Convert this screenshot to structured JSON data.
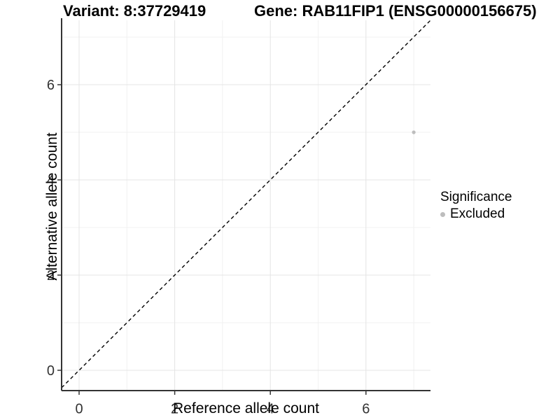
{
  "header": {
    "variant_title": "Variant: 8:37729419",
    "gene_title": "Gene: RAB11FIP1 (ENSG00000156675)"
  },
  "chart_data": {
    "type": "scatter",
    "title_left": "Variant: 8:37729419",
    "title_right": "Gene: RAB11FIP1 (ENSG00000156675)",
    "xlabel": "Reference allele count",
    "ylabel": "Alternative allele count",
    "xlim": [
      -0.37,
      7.35
    ],
    "ylim": [
      -0.43,
      7.35
    ],
    "x_major_ticks": [
      0,
      2,
      4,
      6
    ],
    "y_major_ticks": [
      0,
      2,
      4,
      6
    ],
    "x_minor_ticks": [
      1,
      3,
      5,
      7
    ],
    "y_minor_ticks": [
      1,
      3,
      5,
      7
    ],
    "grid": true,
    "reference_line": {
      "equation": "y = x",
      "style": "dashed",
      "color": "#000000"
    },
    "series": [
      {
        "name": "Excluded",
        "color": "#bdbdbd",
        "points": [
          {
            "x": 7,
            "y": 5
          }
        ]
      }
    ],
    "legend": {
      "title": "Significance",
      "position": "right",
      "items": [
        {
          "label": "Excluded",
          "color": "#bdbdbd"
        }
      ]
    }
  },
  "colors": {
    "background": "#ffffff",
    "axis_line": "#343434",
    "grid_major": "#e4e4e4",
    "grid_minor": "#f1f1f1",
    "tick_label": "#333333",
    "point": "#bdbdbd",
    "reference_line": "#000000"
  }
}
